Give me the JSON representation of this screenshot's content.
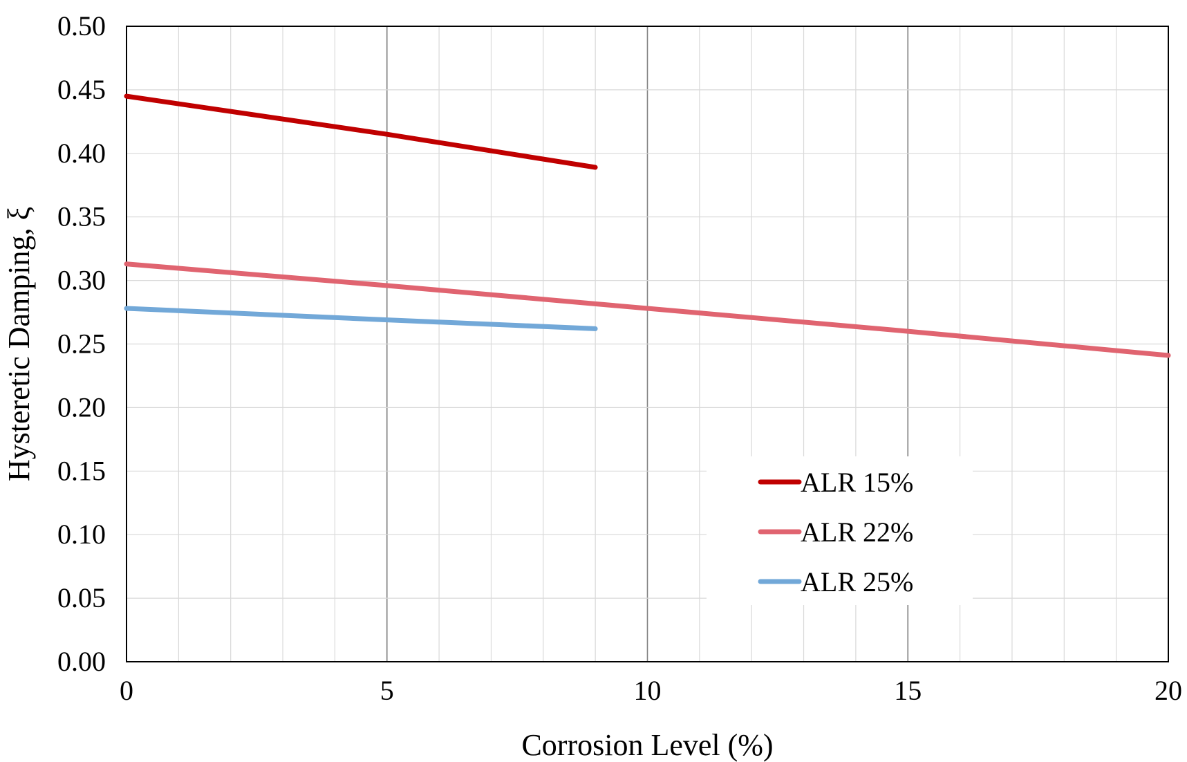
{
  "chart_data": {
    "type": "line",
    "title": "",
    "xlabel": "Corrosion Level (%)",
    "ylabel": "Hysteretic Damping, ξ",
    "xlim": [
      0,
      20
    ],
    "ylim": [
      0,
      0.5
    ],
    "x_ticks": [
      0,
      5,
      10,
      15,
      20
    ],
    "x_tick_labels": [
      "0",
      "5",
      "10",
      "15",
      "20"
    ],
    "y_ticks": [
      0,
      0.05,
      0.1,
      0.15,
      0.2,
      0.25,
      0.3,
      0.35,
      0.4,
      0.45,
      0.5
    ],
    "y_tick_labels": [
      "0.00",
      "0.05",
      "0.10",
      "0.15",
      "0.20",
      "0.25",
      "0.30",
      "0.35",
      "0.40",
      "0.45",
      "0.50"
    ],
    "x_minor_step": 1,
    "grid": true,
    "legend_position": "bottom-right",
    "series": [
      {
        "name": "ALR 15%",
        "color": "#c00000",
        "x": [
          0,
          5,
          9
        ],
        "y": [
          0.445,
          0.415,
          0.389
        ]
      },
      {
        "name": "ALR 22%",
        "color": "#e06470",
        "x": [
          0,
          5,
          10,
          15,
          20
        ],
        "y": [
          0.313,
          0.296,
          0.278,
          0.26,
          0.241
        ]
      },
      {
        "name": "ALR 25%",
        "color": "#72a8d8",
        "x": [
          0,
          5,
          9
        ],
        "y": [
          0.278,
          0.269,
          0.262
        ]
      }
    ]
  }
}
